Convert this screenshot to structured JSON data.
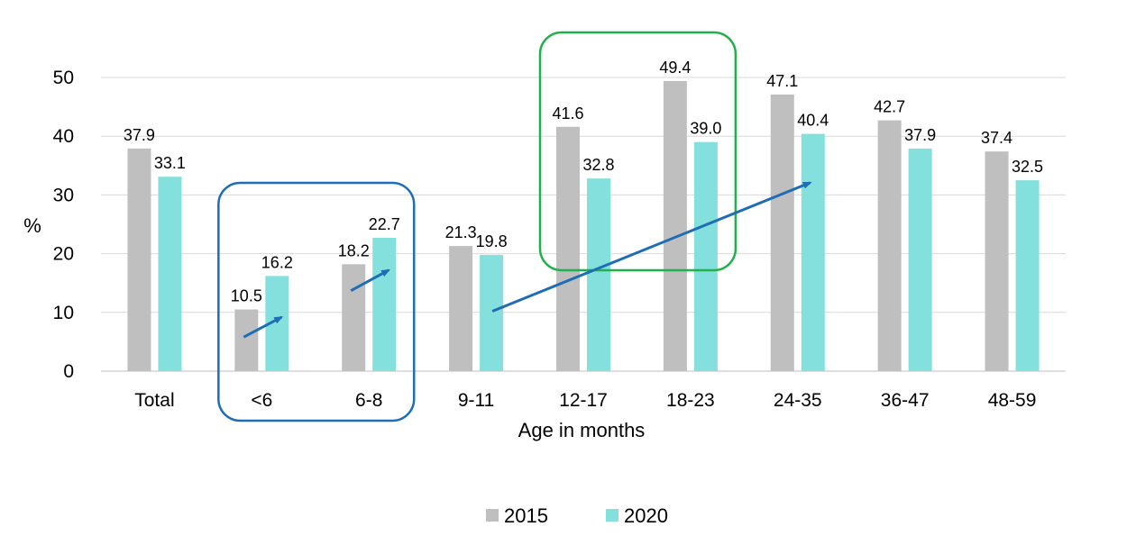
{
  "chart_data": {
    "type": "bar",
    "categories": [
      "Total",
      "<6",
      "6-8",
      "9-11",
      "12-17",
      "18-23",
      "24-35",
      "36-47",
      "48-59"
    ],
    "series": [
      {
        "name": "2015",
        "values": [
          37.9,
          10.5,
          18.2,
          21.3,
          41.6,
          49.4,
          47.1,
          42.7,
          37.4
        ],
        "color": "#bfbfbf"
      },
      {
        "name": "2020",
        "values": [
          33.1,
          16.2,
          22.7,
          19.8,
          32.8,
          39.0,
          40.4,
          37.9,
          32.5
        ],
        "color": "#84e0dd"
      }
    ],
    "value_labels": [
      [
        "37.9",
        "10.5",
        "18.2",
        "21.3",
        "41.6",
        "49.4",
        "47.1",
        "42.7",
        "37.4"
      ],
      [
        "33.1",
        "16.2",
        "22.7",
        "19.8",
        "32.8",
        "39.0",
        "40.4",
        "37.9",
        "32.5"
      ]
    ],
    "xlabel": "Age in months",
    "ylabel": "%",
    "ylim": [
      0,
      50
    ],
    "yticks": [
      "0",
      "10",
      "20",
      "30",
      "40",
      "50"
    ],
    "grid": true,
    "legend_position": "bottom",
    "highlights": [
      {
        "name": "highlight-box-infant",
        "categories": [
          "<6",
          "6-8"
        ],
        "color": "#1f6db5"
      },
      {
        "name": "highlight-box-peak",
        "categories": [
          "12-17",
          "18-23"
        ],
        "color": "#21b04b"
      }
    ],
    "trend_arrows_color": "#1f6db5"
  }
}
